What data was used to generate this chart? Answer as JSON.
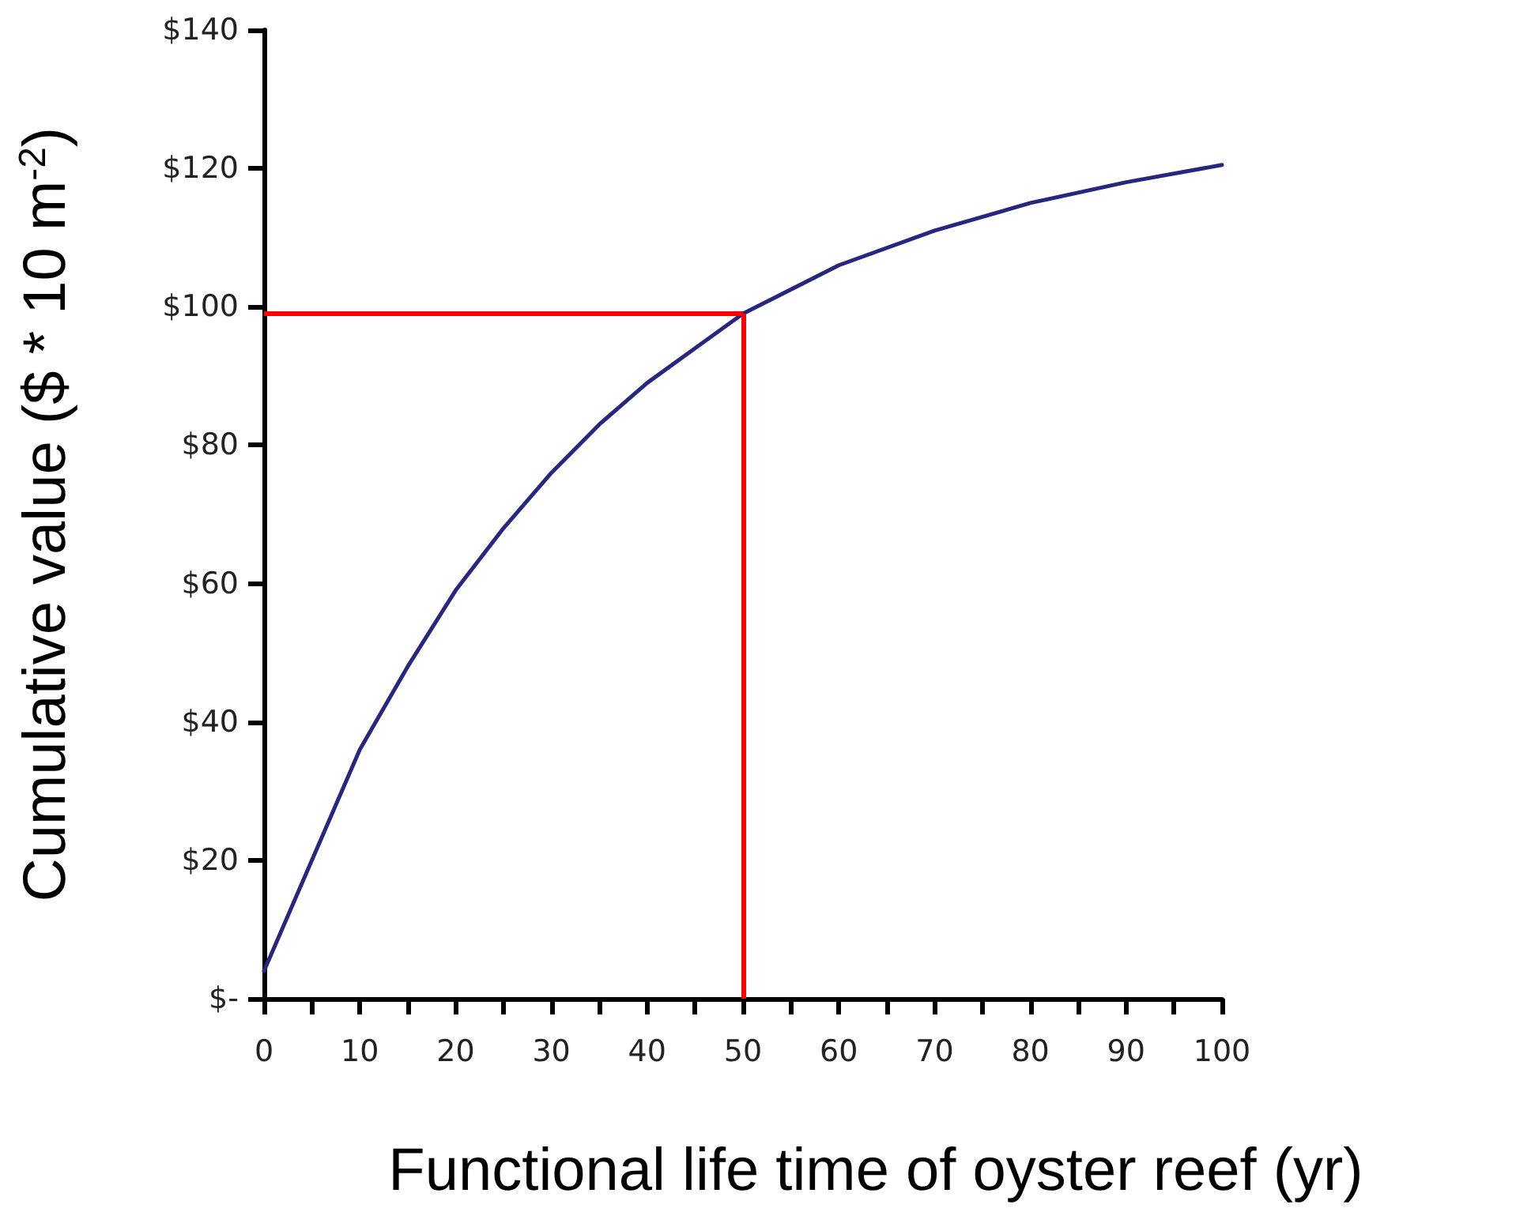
{
  "chart_data": {
    "type": "line",
    "xlabel": "Functional life time of oyster reef (yr)",
    "ylabel": "Cumulative value ($ * 10 m$^{-2}$)",
    "x": [
      0,
      5,
      10,
      15,
      20,
      25,
      30,
      35,
      40,
      45,
      50,
      60,
      70,
      80,
      90,
      100
    ],
    "series": [
      {
        "color": "#27277f",
        "values": [
          4,
          20,
          36,
          48,
          59,
          68,
          76,
          83,
          89,
          94,
          99,
          106,
          111,
          115,
          118,
          120.5
        ]
      }
    ],
    "xlim": [
      0,
      100
    ],
    "xticks": [
      0,
      {
        "value": 5,
        "label": null
      },
      10,
      {
        "value": 15,
        "label": null
      },
      20,
      {
        "value": 25,
        "label": null
      },
      30,
      {
        "value": 35,
        "label": null
      },
      40,
      {
        "value": 45,
        "label": null
      },
      50,
      {
        "value": 55,
        "label": null
      },
      60,
      {
        "value": 65,
        "label": null
      },
      70,
      {
        "value": 75,
        "label": null
      },
      80,
      {
        "value": 85,
        "label": null
      },
      90,
      {
        "value": 95,
        "label": null
      },
      100
    ],
    "ylim": [
      0,
      140
    ],
    "yticks": [
      {
        "value": 0,
        "label": "$-"
      },
      {
        "value": 20,
        "label": "$20"
      },
      {
        "value": 40,
        "label": "$40"
      },
      {
        "value": 60,
        "label": "$60"
      },
      {
        "value": 80,
        "label": "$80"
      },
      {
        "value": 100,
        "label": "$100"
      },
      {
        "value": 120,
        "label": "$120"
      },
      {
        "value": 140,
        "label": "$140"
      }
    ],
    "ref_lines": [
      {
        "axis": "y",
        "value": 99,
        "color": "#ff0000"
      },
      {
        "axis": "x",
        "value": 50,
        "color": "#ff0000"
      }
    ],
    "marker": "none"
  }
}
